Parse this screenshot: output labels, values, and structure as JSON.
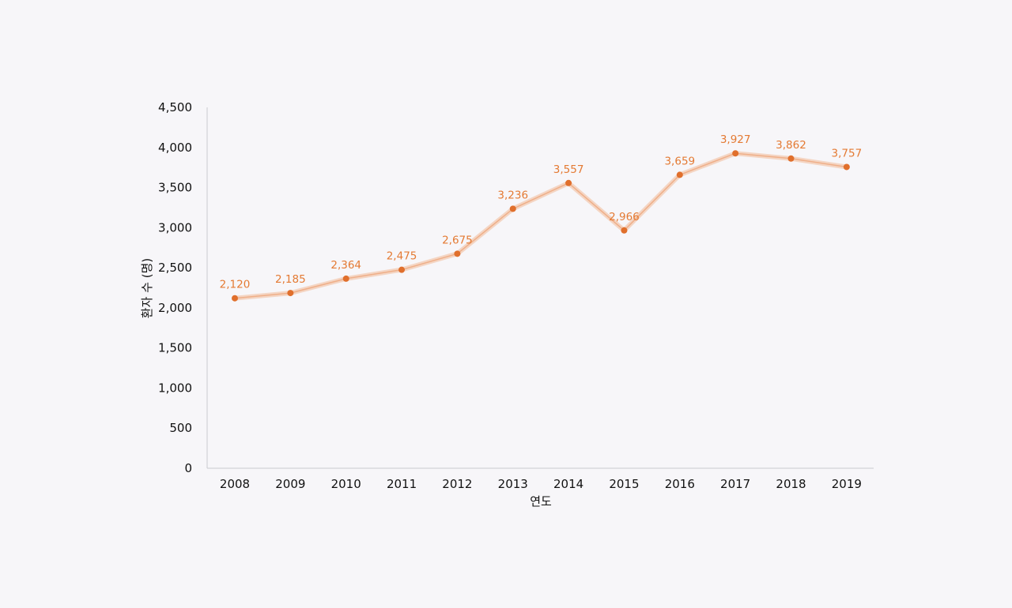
{
  "colors": {
    "background": "#f7f6f9",
    "line_glow": "#f3b998",
    "line": "#eb8f5a",
    "marker": "#e06f2c",
    "data_label": "#e47a33",
    "axis": "#c9c9cf",
    "text": "#111111"
  },
  "chart_data": {
    "type": "line",
    "x": [
      "2008",
      "2009",
      "2010",
      "2011",
      "2012",
      "2013",
      "2014",
      "2015",
      "2016",
      "2017",
      "2018",
      "2019"
    ],
    "series": [
      {
        "values": [
          2120,
          2185,
          2364,
          2475,
          2675,
          3236,
          3557,
          2966,
          3659,
          3927,
          3862,
          3757
        ],
        "data_labels": [
          "2,120",
          "2,185",
          "2,364",
          "2,475",
          "2,675",
          "3,236",
          "3,557",
          "2,966",
          "3,659",
          "3,927",
          "3,862",
          "3,757"
        ]
      }
    ],
    "xlabel": "연도",
    "ylabel": "환자 수 (명)",
    "ylim": [
      0,
      4500
    ],
    "yticks": [
      0,
      500,
      1000,
      1500,
      2000,
      2500,
      3000,
      3500,
      4000,
      4500
    ],
    "ytick_labels": [
      "0",
      "500",
      "1,000",
      "1,500",
      "2,000",
      "2,500",
      "3,000",
      "3,500",
      "4,000",
      "4,500"
    ],
    "grid": false,
    "legend": "none"
  }
}
